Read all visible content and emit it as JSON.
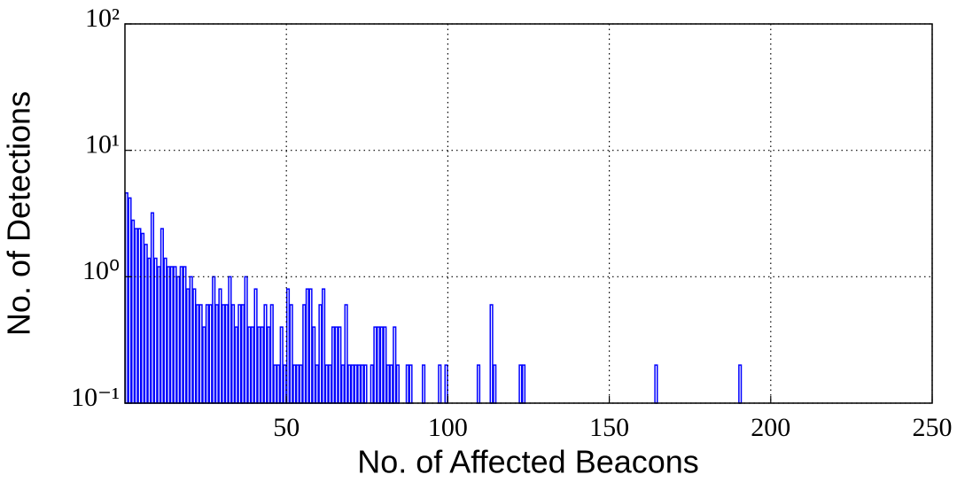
{
  "chart_data": {
    "type": "histogram",
    "xlabel": "No. of Affected Beacons",
    "ylabel": "No. of Detections",
    "bins": [
      0,
      1,
      2,
      3,
      4,
      5,
      6,
      7,
      8,
      9,
      10,
      11,
      12,
      13,
      14,
      15,
      16,
      17,
      18,
      19,
      20,
      21,
      22,
      23,
      24,
      25,
      26,
      27,
      28,
      29,
      30,
      31,
      32,
      33,
      34,
      35,
      36,
      37,
      38,
      39,
      40,
      41,
      42,
      43,
      44,
      45,
      46,
      47,
      48,
      49,
      50,
      51,
      52,
      53,
      54,
      55,
      56,
      57,
      58,
      59,
      60,
      61,
      62,
      63,
      64,
      65,
      66,
      67,
      68,
      69,
      70,
      71,
      72,
      73,
      74,
      75,
      76,
      77,
      78,
      79,
      80,
      81,
      82,
      83,
      84,
      85,
      86,
      87,
      88,
      89,
      90,
      91,
      92,
      93,
      94,
      95,
      96,
      97,
      98,
      99,
      100,
      101,
      102,
      103,
      104,
      105,
      106,
      107,
      108,
      109,
      110,
      111,
      112,
      113,
      114,
      115,
      116,
      117,
      118,
      119,
      120,
      121,
      122,
      123,
      124,
      125,
      126,
      127,
      128,
      129,
      130,
      131,
      132,
      133,
      134,
      135,
      136,
      137,
      138,
      139,
      140,
      141,
      142,
      143,
      144,
      145,
      146,
      147,
      148,
      149,
      150,
      151,
      152,
      153,
      154,
      155,
      156,
      157,
      158,
      159,
      160,
      161,
      162,
      163,
      164,
      165,
      166,
      167,
      168,
      169,
      170,
      171,
      172,
      173,
      174,
      175,
      176,
      177,
      178,
      179,
      180,
      181,
      182,
      183,
      184,
      185,
      186,
      187,
      188,
      189,
      190,
      191
    ],
    "values": [
      4.6,
      4.2,
      2.8,
      2.4,
      2.4,
      2.2,
      1.8,
      1.4,
      3.2,
      1.4,
      1.2,
      2.4,
      1.4,
      1.2,
      1.2,
      1.2,
      1.0,
      1.2,
      1.2,
      0.8,
      1.0,
      0.8,
      0.6,
      0.6,
      0.4,
      0.6,
      0.6,
      1.0,
      0.6,
      0.8,
      0.6,
      0.6,
      1.0,
      0.6,
      0.4,
      0.6,
      0.6,
      1.0,
      0.4,
      0.4,
      0.8,
      0.4,
      0.4,
      0.6,
      0.4,
      0.6,
      0.2,
      0.2,
      0.4,
      0.2,
      0.8,
      0.6,
      0.2,
      0.2,
      0.2,
      0.6,
      0.8,
      0.8,
      0.4,
      0.2,
      0.6,
      0.8,
      0.2,
      0.2,
      0.4,
      0.4,
      0.4,
      0.2,
      0.6,
      0.2,
      0.2,
      0.2,
      0.2,
      0.2,
      0.2,
      0,
      0.2,
      0.4,
      0.4,
      0.4,
      0.4,
      0.2,
      0.2,
      0.4,
      0.2,
      0,
      0,
      0.2,
      0.2,
      0,
      0,
      0,
      0.2,
      0,
      0,
      0,
      0,
      0.2,
      0,
      0.2,
      0,
      0,
      0,
      0,
      0,
      0,
      0,
      0,
      0,
      0.2,
      0,
      0,
      0,
      0.6,
      0.2,
      0,
      0,
      0,
      0,
      0,
      0,
      0,
      0.2,
      0.2,
      0,
      0,
      0,
      0,
      0,
      0,
      0,
      0,
      0,
      0,
      0,
      0,
      0,
      0,
      0,
      0,
      0,
      0,
      0,
      0,
      0,
      0,
      0,
      0,
      0,
      0,
      0,
      0,
      0,
      0,
      0,
      0,
      0,
      0,
      0,
      0,
      0,
      0,
      0,
      0,
      0.2,
      0,
      0,
      0,
      0,
      0,
      0,
      0,
      0,
      0,
      0,
      0,
      0,
      0,
      0,
      0,
      0,
      0,
      0,
      0,
      0,
      0,
      0,
      0,
      0,
      0,
      0.2
    ],
    "color": "#0000ff",
    "xlim": [
      0,
      250
    ],
    "xticks": [
      50,
      100,
      150,
      200,
      250
    ],
    "ylim": [
      0.1,
      100
    ],
    "yscale": "log",
    "yticks": [
      {
        "value": 0.1,
        "label": "10⁻¹"
      },
      {
        "value": 1,
        "label": "10⁰"
      },
      {
        "value": 10,
        "label": "10¹"
      },
      {
        "value": 100,
        "label": "10²"
      }
    ],
    "grid": true
  }
}
